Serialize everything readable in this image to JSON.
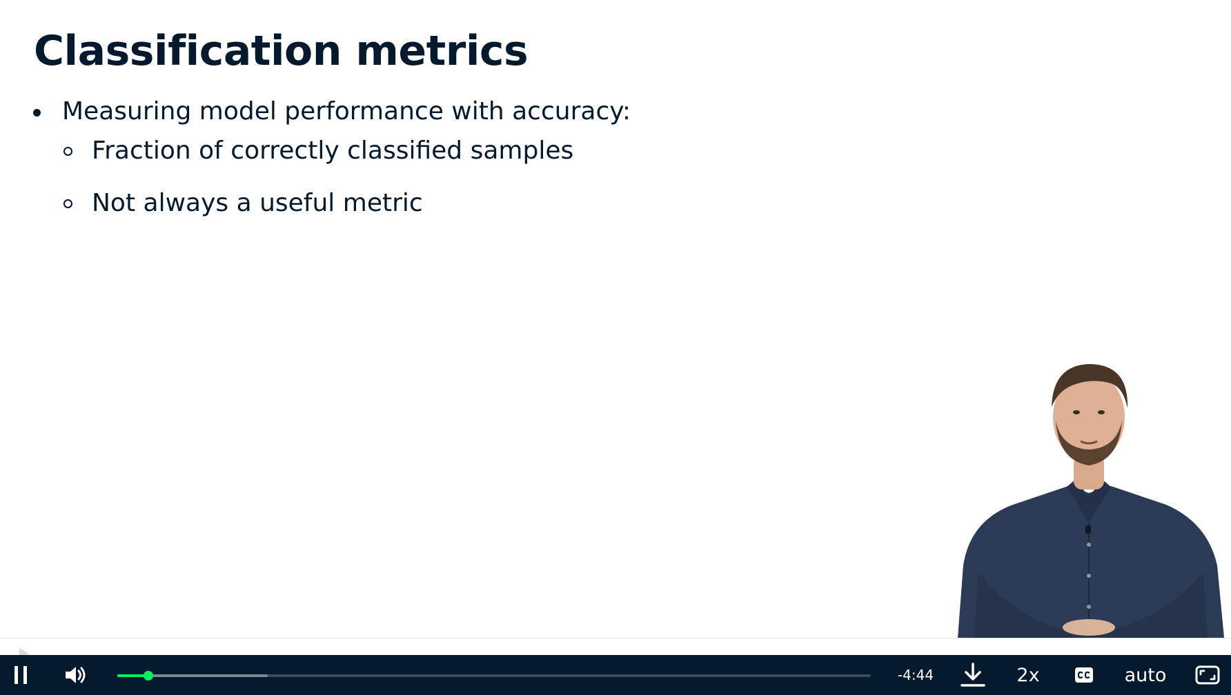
{
  "slide": {
    "title": "Classification metrics",
    "bullets": [
      "Measuring model performance with accuracy:",
      "Fraction of correctly classified samples",
      "Not always a useful metric"
    ]
  },
  "player": {
    "time_remaining": "-4:44",
    "speed_label": "2x",
    "quality_label": "auto",
    "progress_played": 0.041,
    "progress_buffered": 0.2,
    "icons": {
      "play_pause": "pause-icon",
      "volume": "volume-icon",
      "download": "download-icon",
      "captions": "closed-captions-icon",
      "fullscreen": "fullscreen-icon"
    },
    "accent_color": "#03ef62",
    "bar_color": "#05192d"
  }
}
